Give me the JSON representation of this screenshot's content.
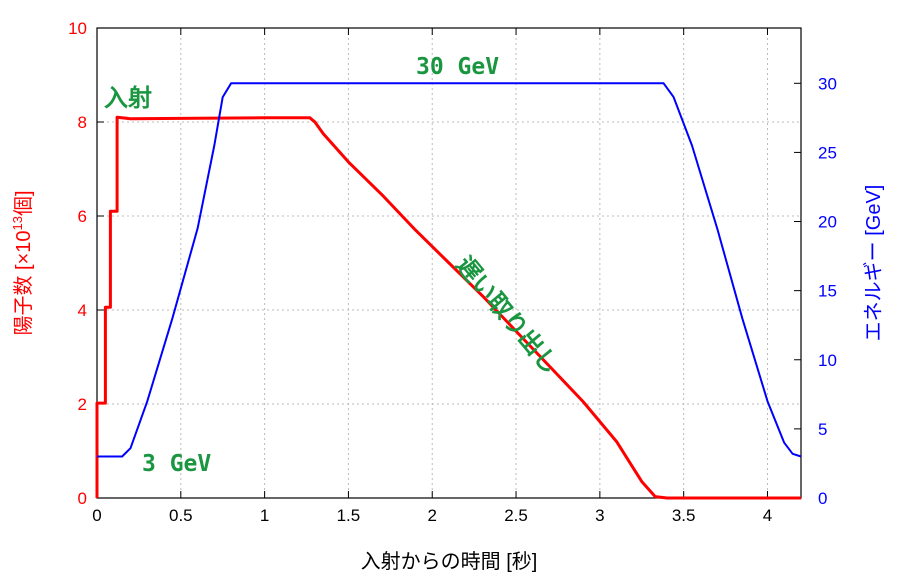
{
  "chart_data": {
    "type": "line",
    "xlabel": "入射からの時間 [秒]",
    "ylabel_left": "陽子数 [×10",
    "ylabel_left_sup": "13",
    "ylabel_left_suffix": "個]",
    "ylabel_right": "エネルギー [GeV]",
    "xlim": [
      0,
      4.2
    ],
    "ylim_left": [
      0,
      10
    ],
    "ylim_right": [
      0,
      34
    ],
    "xticks": [
      "0",
      "0.5",
      "1",
      "1.5",
      "2",
      "2.5",
      "3",
      "3.5",
      "4"
    ],
    "yticks_left": [
      "0",
      "2",
      "4",
      "6",
      "8",
      "10"
    ],
    "yticks_right": [
      "0",
      "5",
      "10",
      "15",
      "20",
      "25",
      "30"
    ],
    "grid": true,
    "colors": {
      "protons": "#ff0000",
      "energy": "#0000ff",
      "annotation": "#1a9641",
      "axis": "#000000",
      "grid": "#bbbbbb"
    },
    "series": [
      {
        "axis": "left",
        "points": [
          [
            0,
            0
          ],
          [
            0.0,
            2.02
          ],
          [
            0.05,
            2.02
          ],
          [
            0.05,
            4.06
          ],
          [
            0.08,
            4.06
          ],
          [
            0.08,
            6.1
          ],
          [
            0.12,
            6.1
          ],
          [
            0.12,
            8.1
          ],
          [
            0.2,
            8.07
          ],
          [
            0.6,
            8.08
          ],
          [
            1.0,
            8.09
          ],
          [
            1.27,
            8.09
          ],
          [
            1.3,
            8.0
          ],
          [
            1.35,
            7.75
          ],
          [
            1.5,
            7.15
          ],
          [
            1.7,
            6.45
          ],
          [
            1.9,
            5.7
          ],
          [
            2.1,
            5.0
          ],
          [
            2.3,
            4.3
          ],
          [
            2.5,
            3.55
          ],
          [
            2.7,
            2.8
          ],
          [
            2.9,
            2.05
          ],
          [
            3.1,
            1.2
          ],
          [
            3.25,
            0.35
          ],
          [
            3.33,
            0.03
          ],
          [
            3.4,
            0.0
          ],
          [
            4.2,
            0.0
          ]
        ]
      },
      {
        "axis": "right",
        "points": [
          [
            0.0,
            3.0
          ],
          [
            0.15,
            3.0
          ],
          [
            0.2,
            3.6
          ],
          [
            0.3,
            7.0
          ],
          [
            0.45,
            13.0
          ],
          [
            0.6,
            19.5
          ],
          [
            0.7,
            25.5
          ],
          [
            0.75,
            29.0
          ],
          [
            0.8,
            30.0
          ],
          [
            3.38,
            30.0
          ],
          [
            3.44,
            29.0
          ],
          [
            3.55,
            25.5
          ],
          [
            3.7,
            19.5
          ],
          [
            3.85,
            13.0
          ],
          [
            4.0,
            7.0
          ],
          [
            4.1,
            4.0
          ],
          [
            4.15,
            3.2
          ],
          [
            4.2,
            3.0
          ]
        ]
      }
    ],
    "annotations": {
      "inject": "入射",
      "top_energy": "30 GeV",
      "bottom_energy": "3 GeV",
      "slow_extraction": "遅い取り出し"
    }
  }
}
